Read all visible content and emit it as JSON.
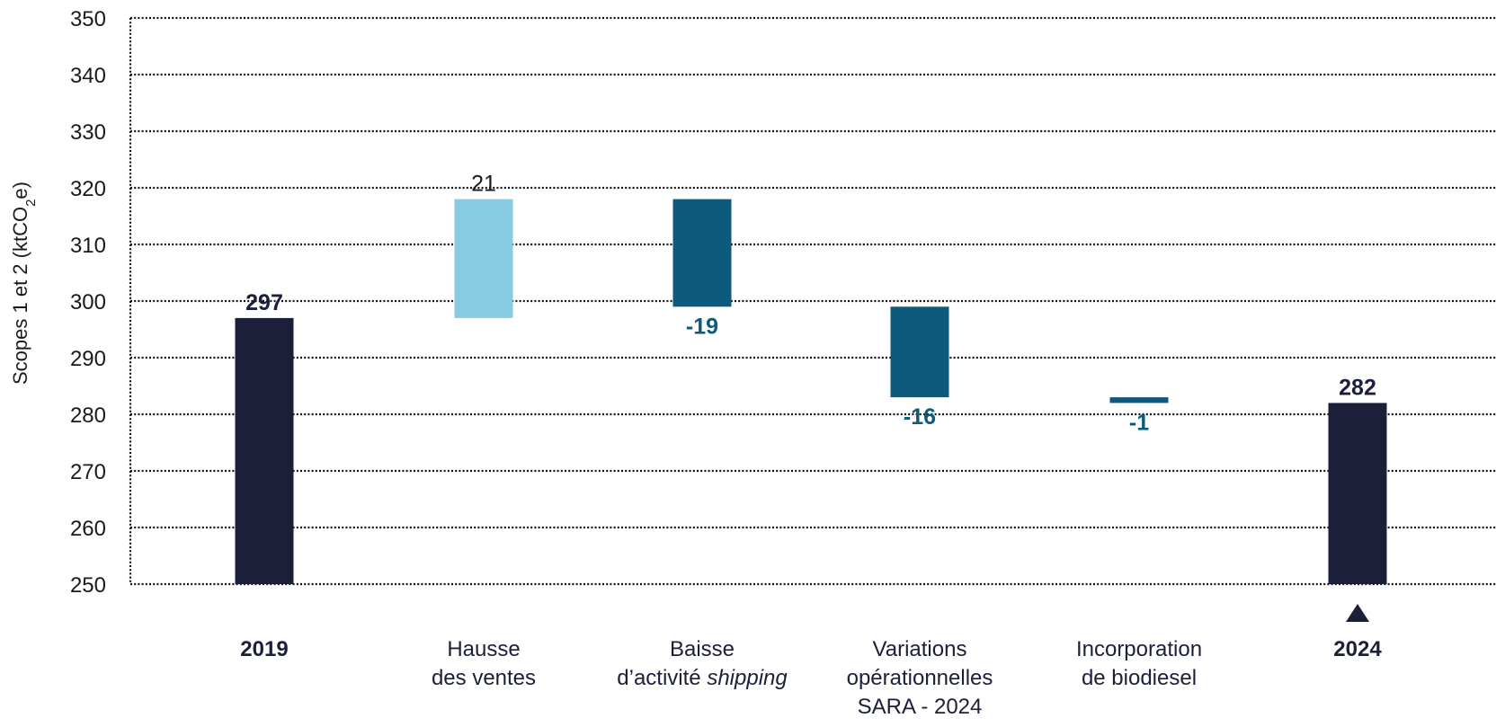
{
  "chart_data": {
    "type": "bar",
    "subtype": "waterfall",
    "ylabel": "Scopes 1 et 2 (ktCO2e)",
    "ylabel_parts": {
      "pre": "Scopes 1 et 2 (ktCO",
      "sub": "2",
      "post": "e)"
    },
    "ylim": [
      250,
      350
    ],
    "yticks": [
      "250",
      "260",
      "270",
      "280",
      "290",
      "300",
      "310",
      "320",
      "330",
      "340",
      "350"
    ],
    "grid": true,
    "categories": [
      {
        "lines": [
          "2019"
        ],
        "bold": true
      },
      {
        "lines": [
          "Hausse",
          "des ventes"
        ],
        "bold": false
      },
      {
        "lines": [
          "Baisse",
          "d’activité shipping"
        ],
        "bold": false,
        "italic_word": "shipping"
      },
      {
        "lines": [
          "Variations",
          "opérationnelles",
          "SARA - 2024"
        ],
        "bold": false
      },
      {
        "lines": [
          "Incorporation",
          "de biodiesel"
        ],
        "bold": false
      },
      {
        "lines": [
          "2024"
        ],
        "bold": true
      }
    ],
    "bars": [
      {
        "kind": "total",
        "from": 250,
        "to": 297,
        "label": "297",
        "color": "#1c1f3a",
        "label_color": "#1c1f3a",
        "label_pos": "above",
        "label_bold": true
      },
      {
        "kind": "increase",
        "from": 297,
        "to": 318,
        "label": "21",
        "color": "#86cbe2",
        "label_color": "#1a1a1a",
        "label_pos": "above",
        "label_bold": false
      },
      {
        "kind": "decrease",
        "from": 318,
        "to": 299,
        "label": "-19",
        "color": "#0d5a7c",
        "label_color": "#0d5a7c",
        "label_pos": "below",
        "label_bold": true
      },
      {
        "kind": "decrease",
        "from": 299,
        "to": 283,
        "label": "-16",
        "color": "#0d5a7c",
        "label_color": "#0d5a7c",
        "label_pos": "below",
        "label_bold": true
      },
      {
        "kind": "decrease",
        "from": 283,
        "to": 282,
        "label": "-1",
        "color": "#0d5a7c",
        "label_color": "#0d5a7c",
        "label_pos": "below",
        "label_bold": true
      },
      {
        "kind": "total",
        "from": 250,
        "to": 282,
        "label": "282",
        "color": "#1c1f3a",
        "label_color": "#1c1f3a",
        "label_pos": "above",
        "label_bold": true
      }
    ],
    "marker": {
      "category_index": 5,
      "shape": "triangle-up",
      "color": "#1c1f3a"
    }
  }
}
